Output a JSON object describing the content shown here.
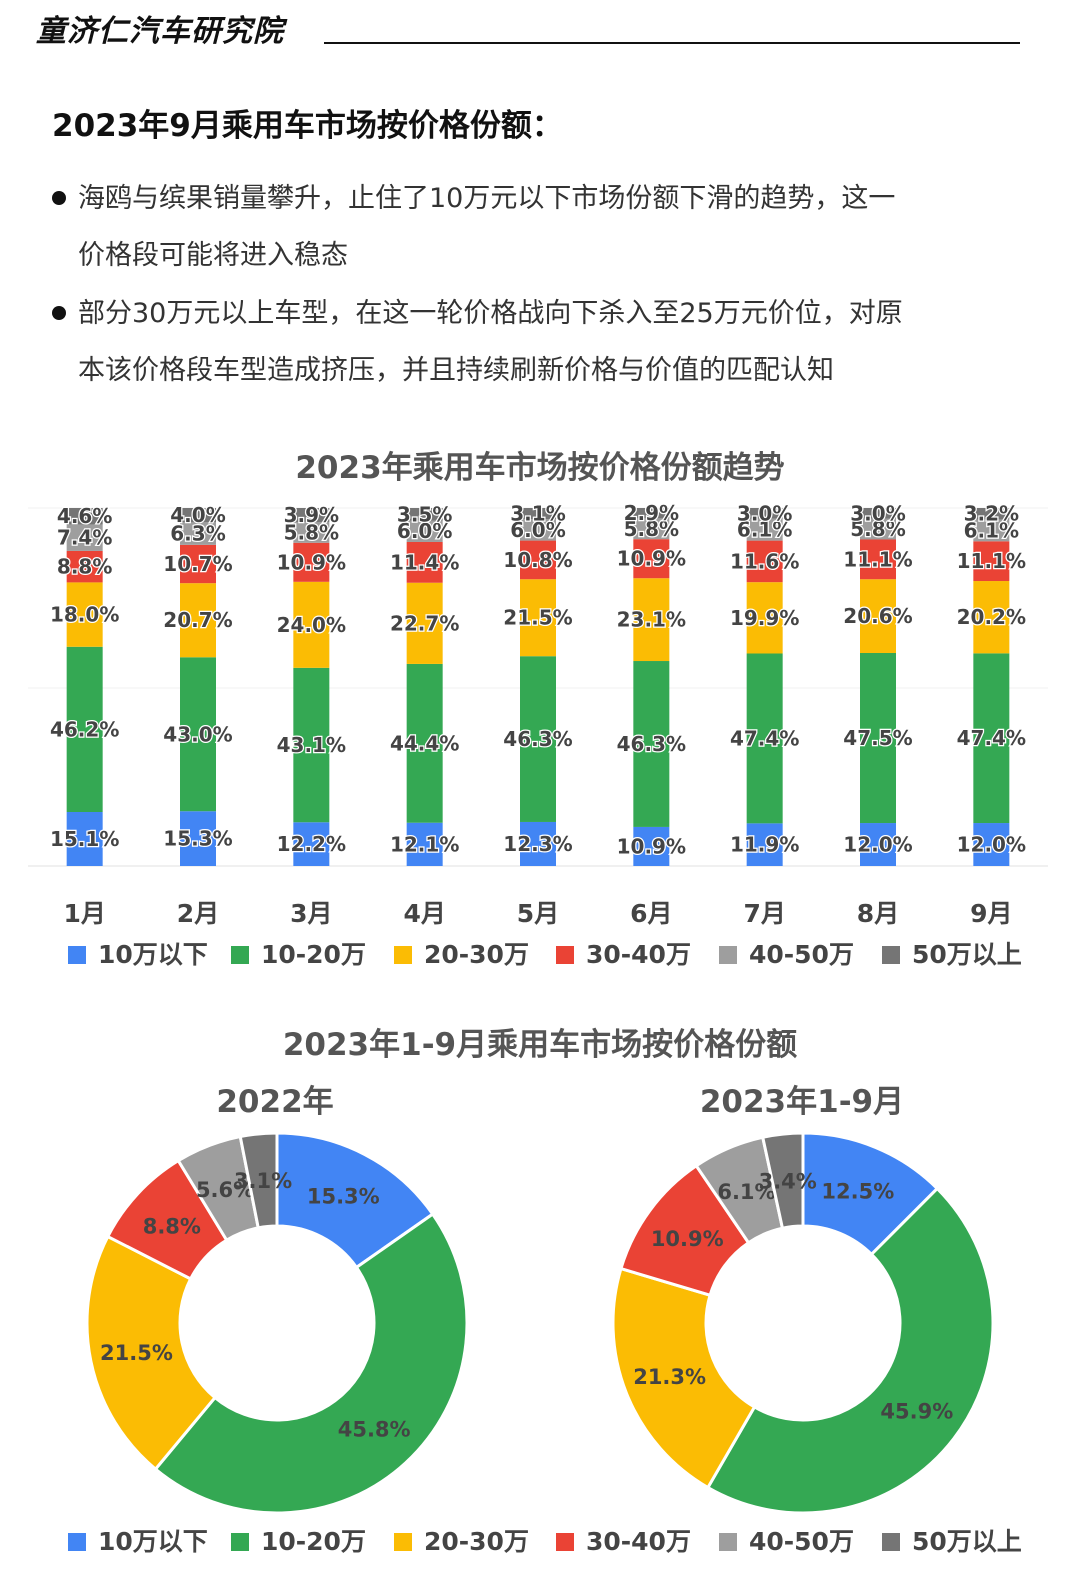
{
  "header": {
    "brand": "童济仁汽车研究院"
  },
  "headline": "2023年9月乘用车市场按价格份额：",
  "bullets": [
    {
      "line1": "海鸥与缤果销量攀升，止住了10万元以下市场份额下滑的趋势，这一",
      "line2": "价格段可能将进入稳态"
    },
    {
      "line1": "部分30万元以上车型，在这一轮价格战向下杀入至25万元价位，对原",
      "line2": "本该价格段车型造成挤压，并且持续刷新价格与价值的匹配认知"
    }
  ],
  "legend": [
    {
      "name": "10万以下",
      "color": "#4285F4"
    },
    {
      "name": "10-20万",
      "color": "#34A853"
    },
    {
      "name": "20-30万",
      "color": "#FBBC04"
    },
    {
      "name": "30-40万",
      "color": "#EA4335"
    },
    {
      "name": "40-50万",
      "color": "#9E9E9E"
    },
    {
      "name": "50万以上",
      "color": "#757575"
    }
  ],
  "chart_data": [
    {
      "type": "bar",
      "stacked": true,
      "title": "2023年乘用车市场按价格份额趋势",
      "categories": [
        "1月",
        "2月",
        "3月",
        "4月",
        "5月",
        "6月",
        "7月",
        "8月",
        "9月"
      ],
      "series": [
        {
          "name": "10万以下",
          "values": [
            15.1,
            15.3,
            12.2,
            12.1,
            12.3,
            10.9,
            11.9,
            12.0,
            12.0
          ],
          "color": "#4285F4"
        },
        {
          "name": "10-20万",
          "values": [
            46.2,
            43.0,
            43.1,
            44.4,
            46.3,
            46.3,
            47.4,
            47.5,
            47.4
          ],
          "color": "#34A853"
        },
        {
          "name": "20-30万",
          "values": [
            18.0,
            20.7,
            24.0,
            22.7,
            21.5,
            23.1,
            19.9,
            20.6,
            20.2
          ],
          "color": "#FBBC04"
        },
        {
          "name": "30-40万",
          "values": [
            8.8,
            10.7,
            10.9,
            11.4,
            10.8,
            10.9,
            11.6,
            11.1,
            11.1
          ],
          "color": "#EA4335"
        },
        {
          "name": "40-50万",
          "values": [
            7.4,
            6.3,
            5.8,
            6.0,
            6.0,
            5.8,
            6.1,
            5.8,
            6.1
          ],
          "color": "#9E9E9E"
        },
        {
          "name": "50万以上",
          "values": [
            4.6,
            4.0,
            3.9,
            3.5,
            3.1,
            2.9,
            3.0,
            3.0,
            3.2
          ],
          "color": "#757575"
        }
      ],
      "data_labels": true,
      "legend_position": "bottom"
    },
    {
      "type": "pie",
      "donut": true,
      "title": "2023年1-9月乘用车市场按价格份额",
      "subtitle": "2022年",
      "labels": [
        "10万以下",
        "10-20万",
        "20-30万",
        "30-40万",
        "40-50万",
        "50万以上"
      ],
      "values": [
        15.3,
        45.8,
        21.5,
        8.8,
        5.6,
        3.1
      ],
      "colors": [
        "#4285F4",
        "#34A853",
        "#FBBC04",
        "#EA4335",
        "#9E9E9E",
        "#757575"
      ]
    },
    {
      "type": "pie",
      "donut": true,
      "subtitle": "2023年1-9月",
      "labels": [
        "10万以下",
        "10-20万",
        "20-30万",
        "30-40万",
        "40-50万",
        "50万以上"
      ],
      "values": [
        12.5,
        45.9,
        21.3,
        10.9,
        6.1,
        3.4
      ],
      "colors": [
        "#4285F4",
        "#34A853",
        "#FBBC04",
        "#EA4335",
        "#9E9E9E",
        "#757575"
      ]
    }
  ]
}
